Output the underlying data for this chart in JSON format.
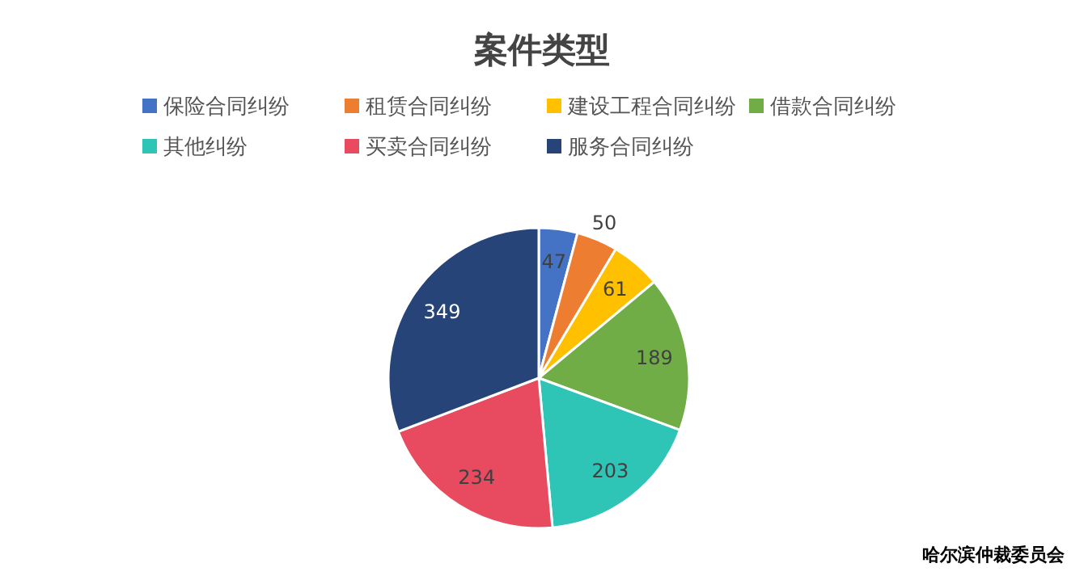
{
  "chart_data": {
    "type": "pie",
    "title": "案件类型",
    "categories": [
      "保险合同纠纷",
      "租赁合同纠纷",
      "建设工程合同纠纷",
      "借款合同纠纷",
      "其他纠纷",
      "买卖合同纠纷",
      "服务合同纠纷"
    ],
    "values": [
      47,
      50,
      61,
      189,
      203,
      234,
      349
    ],
    "colors": [
      "#4472c4",
      "#ed7d31",
      "#ffc000",
      "#70ad47",
      "#2ec4b6",
      "#e84a5f",
      "#264478"
    ],
    "data_labels": true,
    "legend": "top",
    "annotations": [
      "哈尔滨仲裁委员会"
    ]
  }
}
